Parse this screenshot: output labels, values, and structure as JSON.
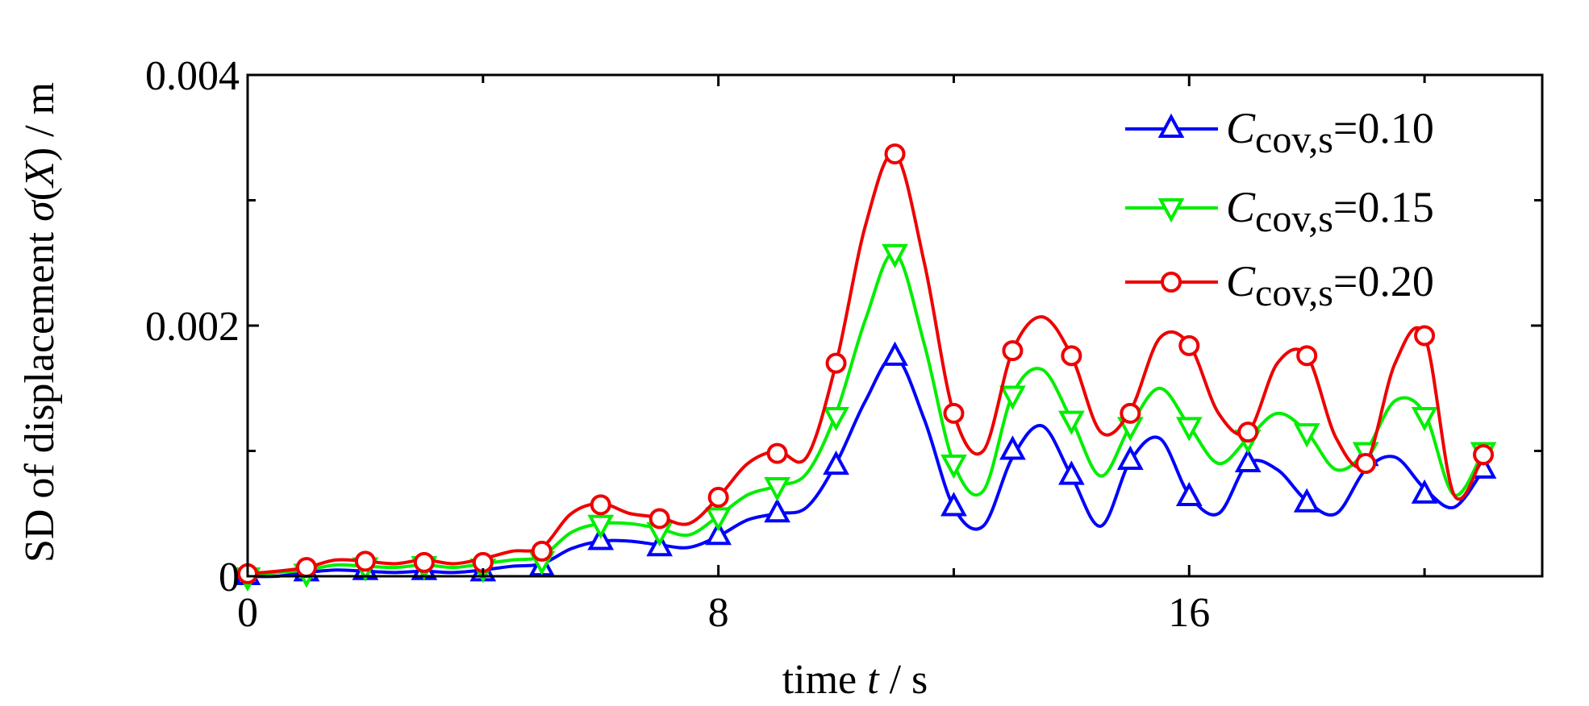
{
  "chart_data": {
    "type": "line",
    "xlabel": {
      "prefix": "time ",
      "var": "t",
      "suffix": " / s"
    },
    "ylabel": {
      "prefix": "SD of displacement ",
      "var1": "σ",
      "open": "(",
      "var2": "X",
      "close": ") / m"
    },
    "xlim": [
      0,
      22
    ],
    "ylim": [
      0,
      0.004
    ],
    "x_ticks": [
      0,
      8,
      16
    ],
    "x_tick_labels": [
      "0",
      "8",
      "16"
    ],
    "y_ticks": [
      0,
      0.002,
      0.004
    ],
    "y_tick_labels": [
      "0",
      "0.002",
      "0.004"
    ],
    "legend_position": "top-right",
    "grid": false,
    "series": [
      {
        "name": {
          "var": "C",
          "sub": "cov,s",
          "value": "=0.10"
        },
        "color": "#0000ff",
        "marker": "triangle-up",
        "x": [
          0,
          0.5,
          1,
          1.5,
          2,
          2.5,
          3,
          3.5,
          4,
          4.5,
          5,
          5.5,
          6,
          6.5,
          7,
          7.5,
          8,
          8.5,
          9,
          9.5,
          10,
          10.5,
          11,
          11.5,
          12,
          12.5,
          13,
          13.5,
          14,
          14.5,
          15,
          15.5,
          16,
          16.5,
          17,
          17.5,
          18,
          18.5,
          19,
          19.5,
          20,
          20.5,
          21
        ],
        "y": [
          0.0,
          0.0,
          3e-05,
          5e-05,
          4e-05,
          3e-05,
          4e-05,
          3e-05,
          5e-05,
          8e-05,
          0.0001,
          0.00022,
          0.00028,
          0.00028,
          0.00025,
          0.00023,
          0.00032,
          0.00045,
          0.0005,
          0.00055,
          0.0009,
          0.0014,
          0.00175,
          0.00125,
          0.00055,
          0.0004,
          0.00095,
          0.0012,
          0.0008,
          0.0004,
          0.00092,
          0.0011,
          0.00065,
          0.0005,
          0.0009,
          0.00085,
          0.0006,
          0.0005,
          0.00085,
          0.00095,
          0.0007,
          0.00055,
          0.00085
        ],
        "marker_x": [
          0,
          1,
          2,
          3,
          4,
          5,
          6,
          7,
          8,
          9,
          10,
          11,
          12,
          13,
          14,
          15,
          16,
          17,
          18,
          19,
          20,
          21
        ],
        "marker_y": [
          0.0,
          3e-05,
          4e-05,
          4e-05,
          3e-05,
          7e-05,
          0.00028,
          0.00023,
          0.00032,
          0.0005,
          0.00088,
          0.00175,
          0.00055,
          0.001,
          0.0008,
          0.00092,
          0.00063,
          0.0009,
          0.00058,
          0.00095,
          0.00065,
          0.00085
        ]
      },
      {
        "name": {
          "var": "C",
          "sub": "cov,s",
          "value": "=0.15"
        },
        "color": "#00ee00",
        "marker": "triangle-down",
        "x": [
          0,
          0.5,
          1,
          1.5,
          2,
          2.5,
          3,
          3.5,
          4,
          4.5,
          5,
          5.5,
          6,
          6.5,
          7,
          7.5,
          8,
          8.5,
          9,
          9.5,
          10,
          10.5,
          11,
          11.5,
          12,
          12.5,
          13,
          13.5,
          14,
          14.5,
          15,
          15.5,
          16,
          16.5,
          17,
          17.5,
          18,
          18.5,
          19,
          19.5,
          20,
          20.5,
          21
        ],
        "y": [
          0.0,
          3e-05,
          5e-05,
          9e-05,
          8e-05,
          7e-05,
          9e-05,
          7e-05,
          0.0001,
          0.00013,
          0.00016,
          0.00035,
          0.00042,
          0.00042,
          0.00038,
          0.00033,
          0.00048,
          0.00065,
          0.00072,
          0.00082,
          0.0013,
          0.00205,
          0.00258,
          0.00185,
          0.0009,
          0.00068,
          0.00145,
          0.00165,
          0.00125,
          0.0008,
          0.0012,
          0.0015,
          0.0012,
          0.0009,
          0.0011,
          0.0013,
          0.00115,
          0.00085,
          0.001,
          0.0014,
          0.0013,
          0.00065,
          0.001
        ],
        "marker_x": [
          0,
          1,
          2,
          3,
          4,
          5,
          6,
          7,
          8,
          9,
          10,
          11,
          12,
          13,
          14,
          15,
          16,
          17,
          18,
          19,
          20,
          21
        ],
        "marker_y": [
          0.0,
          3e-05,
          8e-05,
          9e-05,
          7e-05,
          0.00013,
          0.00042,
          0.00036,
          0.00048,
          0.00072,
          0.00128,
          0.00258,
          0.0009,
          0.00145,
          0.00125,
          0.0012,
          0.0012,
          0.0011,
          0.00115,
          0.001,
          0.00128,
          0.001
        ]
      },
      {
        "name": {
          "var": "C",
          "sub": "cov,s",
          "value": "=0.20"
        },
        "color": "#ee0000",
        "marker": "circle",
        "x": [
          0,
          0.5,
          1,
          1.5,
          2,
          2.5,
          3,
          3.5,
          4,
          4.5,
          5,
          5.5,
          6,
          6.5,
          7,
          7.5,
          8,
          8.5,
          9,
          9.5,
          10,
          10.5,
          11,
          11.5,
          12,
          12.5,
          13,
          13.5,
          14,
          14.5,
          15,
          15.5,
          16,
          16.5,
          17,
          17.5,
          18,
          18.5,
          19,
          19.5,
          20,
          20.5,
          21
        ],
        "y": [
          2e-05,
          4e-05,
          7e-05,
          0.00013,
          0.00012,
          0.0001,
          0.00013,
          0.0001,
          0.00014,
          0.0002,
          0.00023,
          0.0005,
          0.00058,
          0.0005,
          0.00047,
          0.00042,
          0.00063,
          0.0009,
          0.001,
          0.00095,
          0.0017,
          0.0028,
          0.00337,
          0.0025,
          0.0013,
          0.001,
          0.0018,
          0.00207,
          0.00176,
          0.00115,
          0.00132,
          0.0019,
          0.00185,
          0.0013,
          0.00115,
          0.0017,
          0.00176,
          0.0011,
          0.0009,
          0.0017,
          0.00192,
          0.00065,
          0.00097
        ],
        "marker_x": [
          0,
          1,
          2,
          3,
          4,
          5,
          6,
          7,
          8,
          9,
          10,
          11,
          12,
          13,
          14,
          15,
          16,
          17,
          18,
          19,
          20,
          21
        ],
        "marker_y": [
          2e-05,
          7e-05,
          0.00012,
          0.00011,
          0.00011,
          0.0002,
          0.00057,
          0.00046,
          0.00063,
          0.00098,
          0.0017,
          0.00337,
          0.0013,
          0.0018,
          0.00176,
          0.0013,
          0.00184,
          0.00115,
          0.00176,
          0.0009,
          0.00192,
          0.00097
        ]
      }
    ]
  }
}
